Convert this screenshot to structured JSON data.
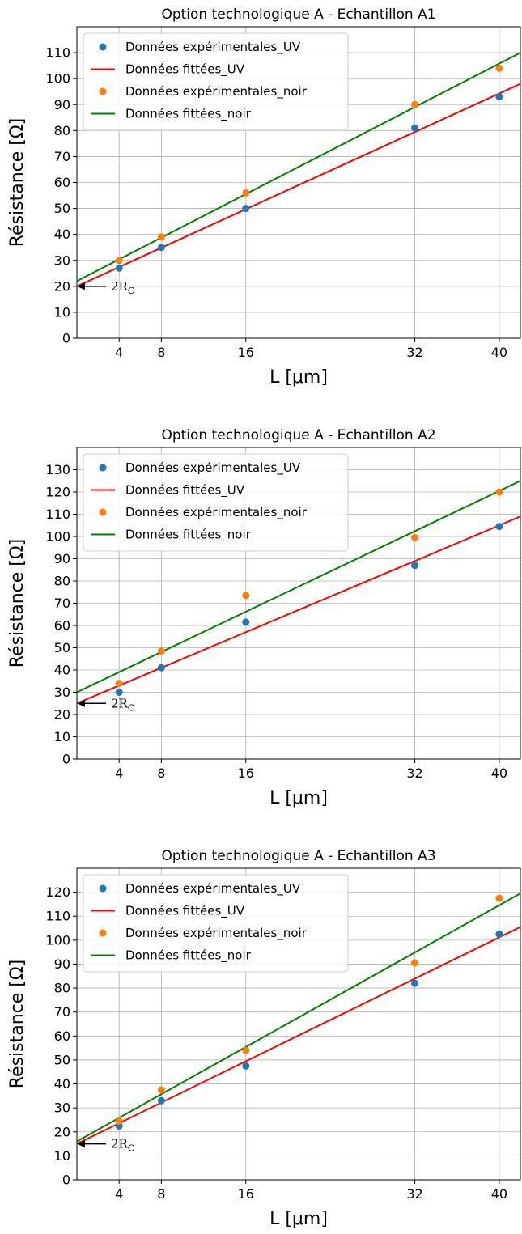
{
  "chart_data": [
    {
      "type": "scatter",
      "title": "Option technologique A - Echantillon A1",
      "xlabel": "L [μm]",
      "ylabel": "Résistance [Ω]",
      "x_ticks": [
        4,
        8,
        16,
        32,
        40
      ],
      "y_ticks": [
        0,
        10,
        20,
        30,
        40,
        50,
        60,
        70,
        80,
        90,
        100,
        110
      ],
      "xlim": [
        0,
        42
      ],
      "ylim": [
        0,
        120
      ],
      "grid": true,
      "legend_position": "top-left",
      "series": [
        {
          "name": "Données expérimentales_UV",
          "kind": "scatter",
          "color": "#1f77b4",
          "x": [
            4,
            8,
            16,
            32,
            40
          ],
          "y": [
            27,
            35,
            50,
            81,
            93
          ]
        },
        {
          "name": "Données fittées_UV",
          "kind": "line",
          "color": "#ff0000",
          "x": [
            0,
            42
          ],
          "y": [
            20,
            98
          ]
        },
        {
          "name": "Données expérimentales_noir",
          "kind": "scatter",
          "color": "#ff7f0e",
          "x": [
            4,
            8,
            16,
            32,
            40
          ],
          "y": [
            30,
            39,
            56,
            90,
            104
          ]
        },
        {
          "name": "Données fittées_noir",
          "kind": "line",
          "color": "#008000",
          "x": [
            0,
            42
          ],
          "y": [
            22,
            110
          ]
        }
      ],
      "annotation": {
        "text_base": "2R",
        "text_sub": "C",
        "x": 0,
        "y": 20
      }
    },
    {
      "type": "scatter",
      "title": "Option technologique A - Echantillon A2",
      "xlabel": "L [μm]",
      "ylabel": "Résistance [Ω]",
      "x_ticks": [
        4,
        8,
        16,
        32,
        40
      ],
      "y_ticks": [
        0,
        10,
        20,
        30,
        40,
        50,
        60,
        70,
        80,
        90,
        100,
        110,
        120,
        130
      ],
      "xlim": [
        0,
        42
      ],
      "ylim": [
        0,
        140
      ],
      "grid": true,
      "legend_position": "top-left",
      "series": [
        {
          "name": "Données expérimentales_UV",
          "kind": "scatter",
          "color": "#1f77b4",
          "x": [
            4,
            8,
            16,
            32,
            40
          ],
          "y": [
            30,
            41,
            61.5,
            87,
            104.5
          ]
        },
        {
          "name": "Données fittées_UV",
          "kind": "line",
          "color": "#ff0000",
          "x": [
            0,
            42
          ],
          "y": [
            25,
            109
          ]
        },
        {
          "name": "Données expérimentales_noir",
          "kind": "scatter",
          "color": "#ff7f0e",
          "x": [
            4,
            8,
            16,
            32,
            40
          ],
          "y": [
            34,
            48.5,
            73.5,
            99.5,
            120
          ]
        },
        {
          "name": "Données fittées_noir",
          "kind": "line",
          "color": "#008000",
          "x": [
            0,
            42
          ],
          "y": [
            30,
            125
          ]
        }
      ],
      "annotation": {
        "text_base": "2R",
        "text_sub": "C",
        "x": 0,
        "y": 25
      }
    },
    {
      "type": "scatter",
      "title": "Option technologique A - Echantillon A3",
      "xlabel": "L [μm]",
      "ylabel": "Résistance [Ω]",
      "x_ticks": [
        4,
        8,
        16,
        32,
        40
      ],
      "y_ticks": [
        0,
        10,
        20,
        30,
        40,
        50,
        60,
        70,
        80,
        90,
        100,
        110,
        120
      ],
      "xlim": [
        0,
        42
      ],
      "ylim": [
        0,
        130
      ],
      "grid": true,
      "legend_position": "top-left",
      "series": [
        {
          "name": "Données expérimentales_UV",
          "kind": "scatter",
          "color": "#1f77b4",
          "x": [
            4,
            8,
            16,
            32,
            40
          ],
          "y": [
            22.5,
            33,
            47.5,
            82,
            102.5
          ]
        },
        {
          "name": "Données fittées_UV",
          "kind": "line",
          "color": "#ff0000",
          "x": [
            0,
            42
          ],
          "y": [
            15,
            105.5
          ]
        },
        {
          "name": "Données expérimentales_noir",
          "kind": "scatter",
          "color": "#ff7f0e",
          "x": [
            4,
            8,
            16,
            32,
            40
          ],
          "y": [
            24.5,
            37.5,
            54,
            90.5,
            117.5
          ]
        },
        {
          "name": "Données fittées_noir",
          "kind": "line",
          "color": "#008000",
          "x": [
            0,
            42
          ],
          "y": [
            16,
            119.5
          ]
        }
      ],
      "annotation": {
        "text_base": "2R",
        "text_sub": "C",
        "x": 0,
        "y": 15
      }
    }
  ]
}
